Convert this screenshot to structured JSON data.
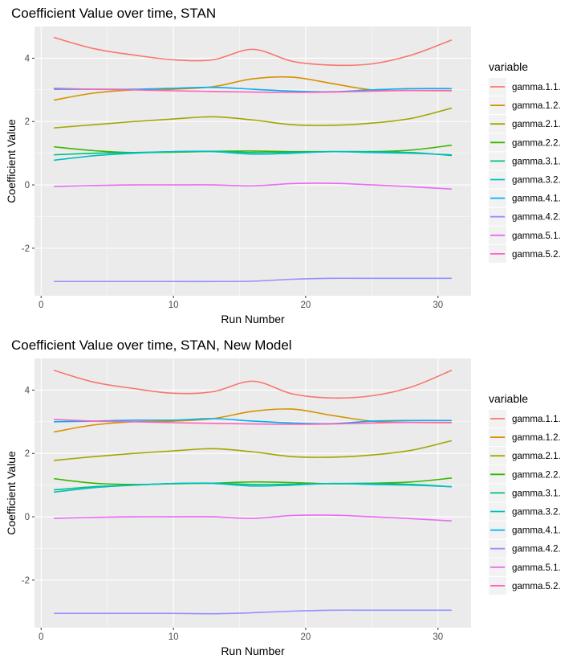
{
  "chart_data": [
    {
      "type": "line",
      "title": "Coefficient Value over time, STAN",
      "xlabel": "Run Number",
      "ylabel": "Coefficient Value",
      "xlim": [
        -0.5,
        32.5
      ],
      "ylim": [
        -3.5,
        5.0
      ],
      "x_ticks": [
        "0",
        "10",
        "20",
        "30"
      ],
      "y_ticks": [
        "-2",
        "0",
        "2",
        "4"
      ],
      "legend_title": "variable",
      "legend_position": "right",
      "grid": true,
      "series": [
        {
          "name": "gamma.1.1.",
          "color": "#F8766D",
          "x": [
            1,
            4,
            7,
            10,
            13,
            16,
            19,
            22,
            25,
            28,
            31
          ],
          "values": [
            4.65,
            4.3,
            4.1,
            3.95,
            3.95,
            4.28,
            3.9,
            3.78,
            3.82,
            4.1,
            4.57
          ]
        },
        {
          "name": "gamma.1.2.",
          "color": "#D89000",
          "x": [
            1,
            4,
            7,
            10,
            13,
            16,
            19,
            22,
            25,
            28,
            31
          ],
          "values": [
            2.68,
            2.9,
            3.0,
            3.02,
            3.1,
            3.35,
            3.4,
            3.2,
            3.0,
            2.98,
            2.97
          ]
        },
        {
          "name": "gamma.2.1.",
          "color": "#A3A500",
          "x": [
            1,
            4,
            7,
            10,
            13,
            16,
            19,
            22,
            25,
            28,
            31
          ],
          "values": [
            1.8,
            1.9,
            2.0,
            2.08,
            2.15,
            2.05,
            1.9,
            1.88,
            1.95,
            2.1,
            2.42
          ]
        },
        {
          "name": "gamma.2.2.",
          "color": "#39B600",
          "x": [
            1,
            4,
            7,
            10,
            13,
            16,
            19,
            22,
            25,
            28,
            31
          ],
          "values": [
            1.2,
            1.08,
            1.02,
            1.03,
            1.06,
            1.07,
            1.05,
            1.05,
            1.05,
            1.1,
            1.25
          ]
        },
        {
          "name": "gamma.3.1.",
          "color": "#00BF7D",
          "x": [
            1,
            4,
            7,
            10,
            13,
            16,
            19,
            22,
            25,
            28,
            31
          ],
          "values": [
            0.95,
            1.0,
            1.02,
            1.05,
            1.06,
            1.02,
            1.03,
            1.05,
            1.05,
            1.02,
            0.93
          ]
        },
        {
          "name": "gamma.3.2.",
          "color": "#00BFC4",
          "x": [
            1,
            4,
            7,
            10,
            13,
            16,
            19,
            22,
            25,
            28,
            31
          ],
          "values": [
            0.78,
            0.92,
            1.0,
            1.05,
            1.05,
            0.97,
            1.0,
            1.05,
            1.02,
            1.0,
            0.95
          ]
        },
        {
          "name": "gamma.4.1.",
          "color": "#00B0F6",
          "x": [
            1,
            4,
            7,
            10,
            13,
            16,
            19,
            22,
            25,
            28,
            31
          ],
          "values": [
            3.02,
            3.02,
            3.02,
            3.05,
            3.08,
            3.02,
            2.96,
            2.94,
            3.0,
            3.04,
            3.04
          ]
        },
        {
          "name": "gamma.4.2.",
          "color": "#9590FF",
          "x": [
            1,
            4,
            7,
            10,
            13,
            16,
            19,
            22,
            25,
            28,
            31
          ],
          "values": [
            -3.05,
            -3.05,
            -3.05,
            -3.05,
            -3.05,
            -3.04,
            -2.98,
            -2.95,
            -2.95,
            -2.95,
            -2.95
          ]
        },
        {
          "name": "gamma.5.1.",
          "color": "#E76BF3",
          "x": [
            1,
            4,
            7,
            10,
            13,
            16,
            19,
            22,
            25,
            28,
            31
          ],
          "values": [
            -0.05,
            -0.02,
            0.0,
            0.0,
            0.0,
            -0.03,
            0.04,
            0.05,
            0.0,
            -0.06,
            -0.13
          ]
        },
        {
          "name": "gamma.5.2.",
          "color": "#FF62BC",
          "x": [
            1,
            4,
            7,
            10,
            13,
            16,
            19,
            22,
            25,
            28,
            31
          ],
          "values": [
            3.05,
            3.02,
            3.0,
            2.97,
            2.95,
            2.93,
            2.92,
            2.93,
            2.96,
            2.98,
            2.98
          ]
        }
      ]
    },
    {
      "type": "line",
      "title": "Coefficient Value over time, STAN, New Model",
      "xlabel": "Run Number",
      "ylabel": "Coefficient Value",
      "xlim": [
        -0.5,
        32.5
      ],
      "ylim": [
        -3.5,
        5.0
      ],
      "x_ticks": [
        "0",
        "10",
        "20",
        "30"
      ],
      "y_ticks": [
        "-2",
        "0",
        "2",
        "4"
      ],
      "legend_title": "variable",
      "legend_position": "right",
      "grid": true,
      "series": [
        {
          "name": "gamma.1.1.",
          "color": "#F8766D",
          "x": [
            1,
            4,
            7,
            10,
            13,
            16,
            19,
            22,
            25,
            28,
            31
          ],
          "values": [
            4.62,
            4.25,
            4.05,
            3.9,
            3.95,
            4.28,
            3.88,
            3.75,
            3.82,
            4.1,
            4.62
          ]
        },
        {
          "name": "gamma.1.2.",
          "color": "#D89000",
          "x": [
            1,
            4,
            7,
            10,
            13,
            16,
            19,
            22,
            25,
            28,
            31
          ],
          "values": [
            2.68,
            2.9,
            3.0,
            3.02,
            3.1,
            3.33,
            3.4,
            3.2,
            3.02,
            2.98,
            2.97
          ]
        },
        {
          "name": "gamma.2.1.",
          "color": "#A3A500",
          "x": [
            1,
            4,
            7,
            10,
            13,
            16,
            19,
            22,
            25,
            28,
            31
          ],
          "values": [
            1.78,
            1.9,
            2.0,
            2.08,
            2.15,
            2.05,
            1.9,
            1.88,
            1.95,
            2.1,
            2.4
          ]
        },
        {
          "name": "gamma.2.2.",
          "color": "#39B600",
          "x": [
            1,
            4,
            7,
            10,
            13,
            16,
            19,
            22,
            25,
            28,
            31
          ],
          "values": [
            1.2,
            1.06,
            1.02,
            1.04,
            1.06,
            1.1,
            1.08,
            1.04,
            1.06,
            1.1,
            1.22
          ]
        },
        {
          "name": "gamma.3.1.",
          "color": "#00BF7D",
          "x": [
            1,
            4,
            7,
            10,
            13,
            16,
            19,
            22,
            25,
            28,
            31
          ],
          "values": [
            0.85,
            0.95,
            1.0,
            1.05,
            1.06,
            1.02,
            1.03,
            1.05,
            1.05,
            1.02,
            0.95
          ]
        },
        {
          "name": "gamma.3.2.",
          "color": "#00BFC4",
          "x": [
            1,
            4,
            7,
            10,
            13,
            16,
            19,
            22,
            25,
            28,
            31
          ],
          "values": [
            0.78,
            0.92,
            1.0,
            1.05,
            1.05,
            0.97,
            1.0,
            1.05,
            1.02,
            1.0,
            0.95
          ]
        },
        {
          "name": "gamma.4.1.",
          "color": "#00B0F6",
          "x": [
            1,
            4,
            7,
            10,
            13,
            16,
            19,
            22,
            25,
            28,
            31
          ],
          "values": [
            3.0,
            3.02,
            3.05,
            3.05,
            3.1,
            3.02,
            2.96,
            2.94,
            3.02,
            3.04,
            3.04
          ]
        },
        {
          "name": "gamma.4.2.",
          "color": "#9590FF",
          "x": [
            1,
            4,
            7,
            10,
            13,
            16,
            19,
            22,
            25,
            28,
            31
          ],
          "values": [
            -3.05,
            -3.05,
            -3.05,
            -3.05,
            -3.06,
            -3.03,
            -2.98,
            -2.95,
            -2.95,
            -2.95,
            -2.95
          ]
        },
        {
          "name": "gamma.5.1.",
          "color": "#E76BF3",
          "x": [
            1,
            4,
            7,
            10,
            13,
            16,
            19,
            22,
            25,
            28,
            31
          ],
          "values": [
            -0.05,
            -0.02,
            0.0,
            0.0,
            0.0,
            -0.05,
            0.04,
            0.05,
            0.0,
            -0.06,
            -0.13
          ]
        },
        {
          "name": "gamma.5.2.",
          "color": "#FF62BC",
          "x": [
            1,
            4,
            7,
            10,
            13,
            16,
            19,
            22,
            25,
            28,
            31
          ],
          "values": [
            3.07,
            3.02,
            3.0,
            2.97,
            2.95,
            2.93,
            2.92,
            2.93,
            2.96,
            2.98,
            2.98
          ]
        }
      ]
    }
  ]
}
